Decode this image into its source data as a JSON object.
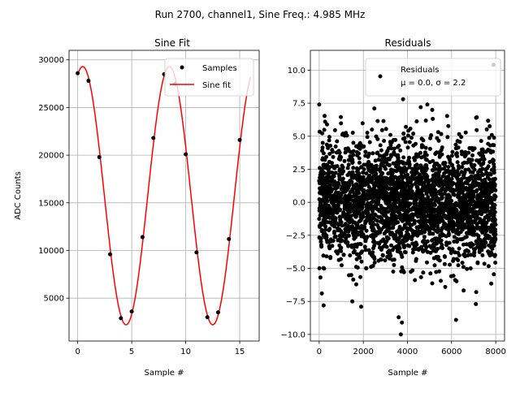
{
  "chart_data": [
    {
      "type": "scatter+line",
      "title": "Sine Fit",
      "xlabel": "Sample #",
      "ylabel": "ADC Counts",
      "xlim": [
        -0.8,
        16.8
      ],
      "ylim": [
        500,
        31000
      ],
      "xticks": [
        0,
        5,
        10,
        15
      ],
      "xtick_labels": [
        "0",
        "5",
        "10",
        "15"
      ],
      "yticks": [
        5000,
        10000,
        15000,
        20000,
        25000,
        30000
      ],
      "ytick_labels": [
        "5000",
        "10000",
        "15000",
        "20000",
        "25000",
        "30000"
      ],
      "grid": true,
      "legend_position": "top-right",
      "series": [
        {
          "name": "Samples",
          "kind": "scatter",
          "color": "#000000",
          "x": [
            0,
            1,
            2,
            3,
            4,
            5,
            6,
            7,
            8,
            9,
            10,
            11,
            12,
            13,
            14,
            15
          ],
          "y": [
            28600,
            27800,
            19800,
            9600,
            2900,
            3600,
            11400,
            21800,
            28500,
            27500,
            20100,
            9800,
            3000,
            3500,
            11200,
            21600
          ]
        },
        {
          "name": "Sine fit",
          "kind": "line",
          "color": "#ff0000",
          "model": "sine",
          "amplitude": 13550,
          "offset": 15750,
          "period": 8.024,
          "phase_sample": 2.47,
          "x_range": [
            0,
            16
          ]
        }
      ]
    },
    {
      "type": "scatter",
      "title": "Residuals",
      "xlabel": "Sample #",
      "ylabel": "",
      "xlim": [
        -400,
        8400
      ],
      "ylim": [
        -10.5,
        11.5
      ],
      "xticks": [
        0,
        2000,
        4000,
        6000,
        8000
      ],
      "xtick_labels": [
        "0",
        "2000",
        "4000",
        "6000",
        "8000"
      ],
      "yticks": [
        -10.0,
        -7.5,
        -5.0,
        -2.5,
        0.0,
        2.5,
        5.0,
        7.5,
        10.0
      ],
      "ytick_labels": [
        "−10.0",
        "−7.5",
        "−5.0",
        "−2.5",
        "0.0",
        "2.5",
        "5.0",
        "7.5",
        "10.0"
      ],
      "grid": true,
      "legend_position": "top-right",
      "series": [
        {
          "name": "Residuals",
          "kind": "scatter",
          "color": "#000000",
          "n_points": 8000,
          "mean": 0.0,
          "sigma": 2.2,
          "x_range": [
            0,
            8000
          ],
          "outliers_x": [
            0,
            120,
            2500,
            3700,
            3800,
            4600,
            7900,
            200,
            1900,
            3600,
            3750,
            6200,
            7100,
            4900,
            1500
          ],
          "outliers_y": [
            7.4,
            -6.9,
            7.1,
            -10.0,
            7.8,
            7.2,
            10.4,
            -7.8,
            -7.9,
            -8.7,
            -9.1,
            -8.9,
            -7.7,
            7.4,
            -7.5
          ]
        }
      ]
    }
  ],
  "figure": {
    "suptitle": "Run 2700, channel1, Sine Freq.: 4.985 MHz"
  },
  "legend_left": {
    "samples_label": "Samples",
    "fit_label": "Sine fit"
  },
  "legend_right": {
    "label": "Residuals",
    "stats": "μ = 0.0, σ = 2.2"
  }
}
